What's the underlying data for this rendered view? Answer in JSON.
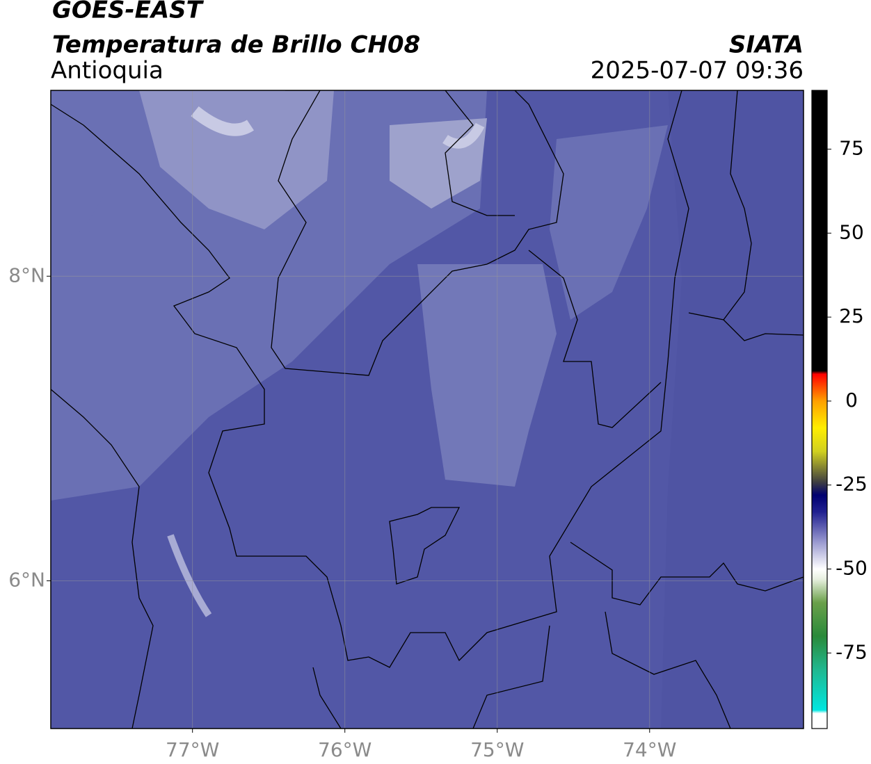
{
  "header": {
    "satellite": "GOES-EAST",
    "product": "Temperatura de Brillo CH08",
    "region": "Antioquia",
    "agency": "SIATA",
    "datetime": "2025-07-07 09:36"
  },
  "map": {
    "xlim": [
      -77.93,
      -72.99
    ],
    "ylim": [
      5.03,
      9.22
    ],
    "xticks": [
      {
        "value": -77,
        "label": "77°W"
      },
      {
        "value": -76,
        "label": "76°W"
      },
      {
        "value": -75,
        "label": "75°W"
      },
      {
        "value": -74,
        "label": "74°W"
      }
    ],
    "yticks": [
      {
        "value": 6,
        "label": "6°N"
      },
      {
        "value": 8,
        "label": "8°N"
      }
    ],
    "grid": true
  },
  "colorbar": {
    "lim": [
      -97.5,
      92.5
    ],
    "ticks": [
      -75,
      -50,
      -25,
      0,
      25,
      50,
      75
    ],
    "stops": [
      {
        "value": -97.5,
        "color": "#ffffff"
      },
      {
        "value": -93,
        "color": "#ffffff"
      },
      {
        "value": -92,
        "color": "#00e6e0"
      },
      {
        "value": -80,
        "color": "#20b890"
      },
      {
        "value": -70,
        "color": "#2a8a3a"
      },
      {
        "value": -60,
        "color": "#6aa04a"
      },
      {
        "value": -53,
        "color": "#e8f0e0"
      },
      {
        "value": -50,
        "color": "#ffffff"
      },
      {
        "value": -42,
        "color": "#9a9ad0"
      },
      {
        "value": -33,
        "color": "#202090"
      },
      {
        "value": -28,
        "color": "#000070"
      },
      {
        "value": -24,
        "color": "#404040"
      },
      {
        "value": -15,
        "color": "#d0d020"
      },
      {
        "value": -8,
        "color": "#ffee00"
      },
      {
        "value": 0,
        "color": "#ffa000"
      },
      {
        "value": 8,
        "color": "#ff0000"
      },
      {
        "value": 9,
        "color": "#000000"
      },
      {
        "value": 92.5,
        "color": "#000000"
      }
    ]
  }
}
